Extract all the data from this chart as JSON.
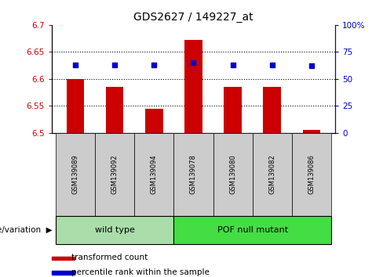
{
  "title": "GDS2627 / 149227_at",
  "samples": [
    "GSM139089",
    "GSM139092",
    "GSM139094",
    "GSM139078",
    "GSM139080",
    "GSM139082",
    "GSM139086"
  ],
  "bar_values": [
    6.6,
    6.585,
    6.545,
    6.672,
    6.585,
    6.585,
    6.505
  ],
  "percentile_values": [
    63,
    63,
    63,
    65,
    63,
    63,
    62
  ],
  "bar_bottom": 6.5,
  "ylim_left": [
    6.5,
    6.7
  ],
  "ylim_right": [
    0,
    100
  ],
  "yticks_left": [
    6.5,
    6.55,
    6.6,
    6.65,
    6.7
  ],
  "yticks_right": [
    0,
    25,
    50,
    75,
    100
  ],
  "ytick_labels_left": [
    "6.5",
    "6.55",
    "6.6",
    "6.65",
    "6.7"
  ],
  "ytick_labels_right": [
    "0",
    "25",
    "50",
    "75",
    "100%"
  ],
  "bar_color": "#cc0000",
  "dot_color": "#0000cc",
  "bar_width": 0.45,
  "wild_type_indices": [
    0,
    1,
    2
  ],
  "pof_indices": [
    3,
    4,
    5,
    6
  ],
  "wild_type_label": "wild type",
  "pof_label": "POF null mutant",
  "group_label": "genotype/variation",
  "legend_bar_label": "transformed count",
  "legend_dot_label": "percentile rank within the sample",
  "wild_type_color": "#aaddaa",
  "pof_color": "#44dd44",
  "tick_area_color": "#cccccc",
  "title_color": "#000000",
  "left_tick_color": "#cc0000",
  "right_tick_color": "#0000cc",
  "grid_yticks": [
    6.55,
    6.6,
    6.65
  ]
}
